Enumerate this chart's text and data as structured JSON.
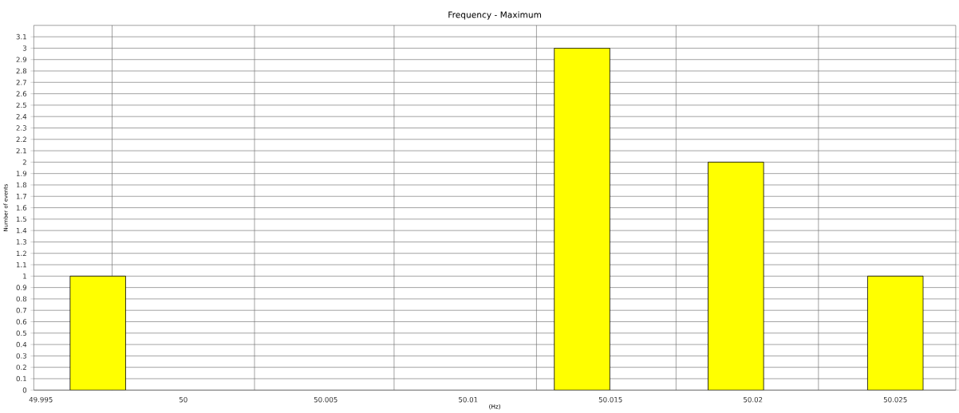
{
  "chart_data": {
    "type": "bar",
    "title": "Frequency  -  Maximum",
    "xlabel": "(Hz)",
    "ylabel": "Number of events",
    "x": [
      49.997,
      50.014,
      50.0194,
      50.025
    ],
    "values": [
      1,
      3,
      2,
      1
    ],
    "color": "#ffff00",
    "xlim": [
      49.99475,
      50.02712
    ],
    "xticks": [
      49.995,
      50,
      50.005,
      50.01,
      50.015,
      50.02,
      50.025,
      {
        "value": 49.9975,
        "label": null
      },
      {
        "value": 50.0025,
        "label": null
      },
      {
        "value": 50.0074,
        "label": null
      },
      {
        "value": 50.0124,
        "label": null
      },
      {
        "value": 50.0173,
        "label": null
      },
      {
        "value": 50.0223,
        "label": null
      }
    ],
    "ylim": [
      0,
      3.2
    ],
    "yticks": [
      0,
      0.1,
      0.2,
      0.3,
      0.4,
      0.5,
      0.6,
      0.7,
      0.8,
      0.9,
      1,
      1.1,
      1.2,
      1.3,
      1.4,
      1.5,
      1.6,
      1.7,
      1.8,
      1.9,
      2,
      2.1,
      2.2,
      2.3,
      2.4,
      2.5,
      2.6,
      2.7,
      2.8,
      2.9,
      3,
      3.1
    ],
    "grid": true
  }
}
